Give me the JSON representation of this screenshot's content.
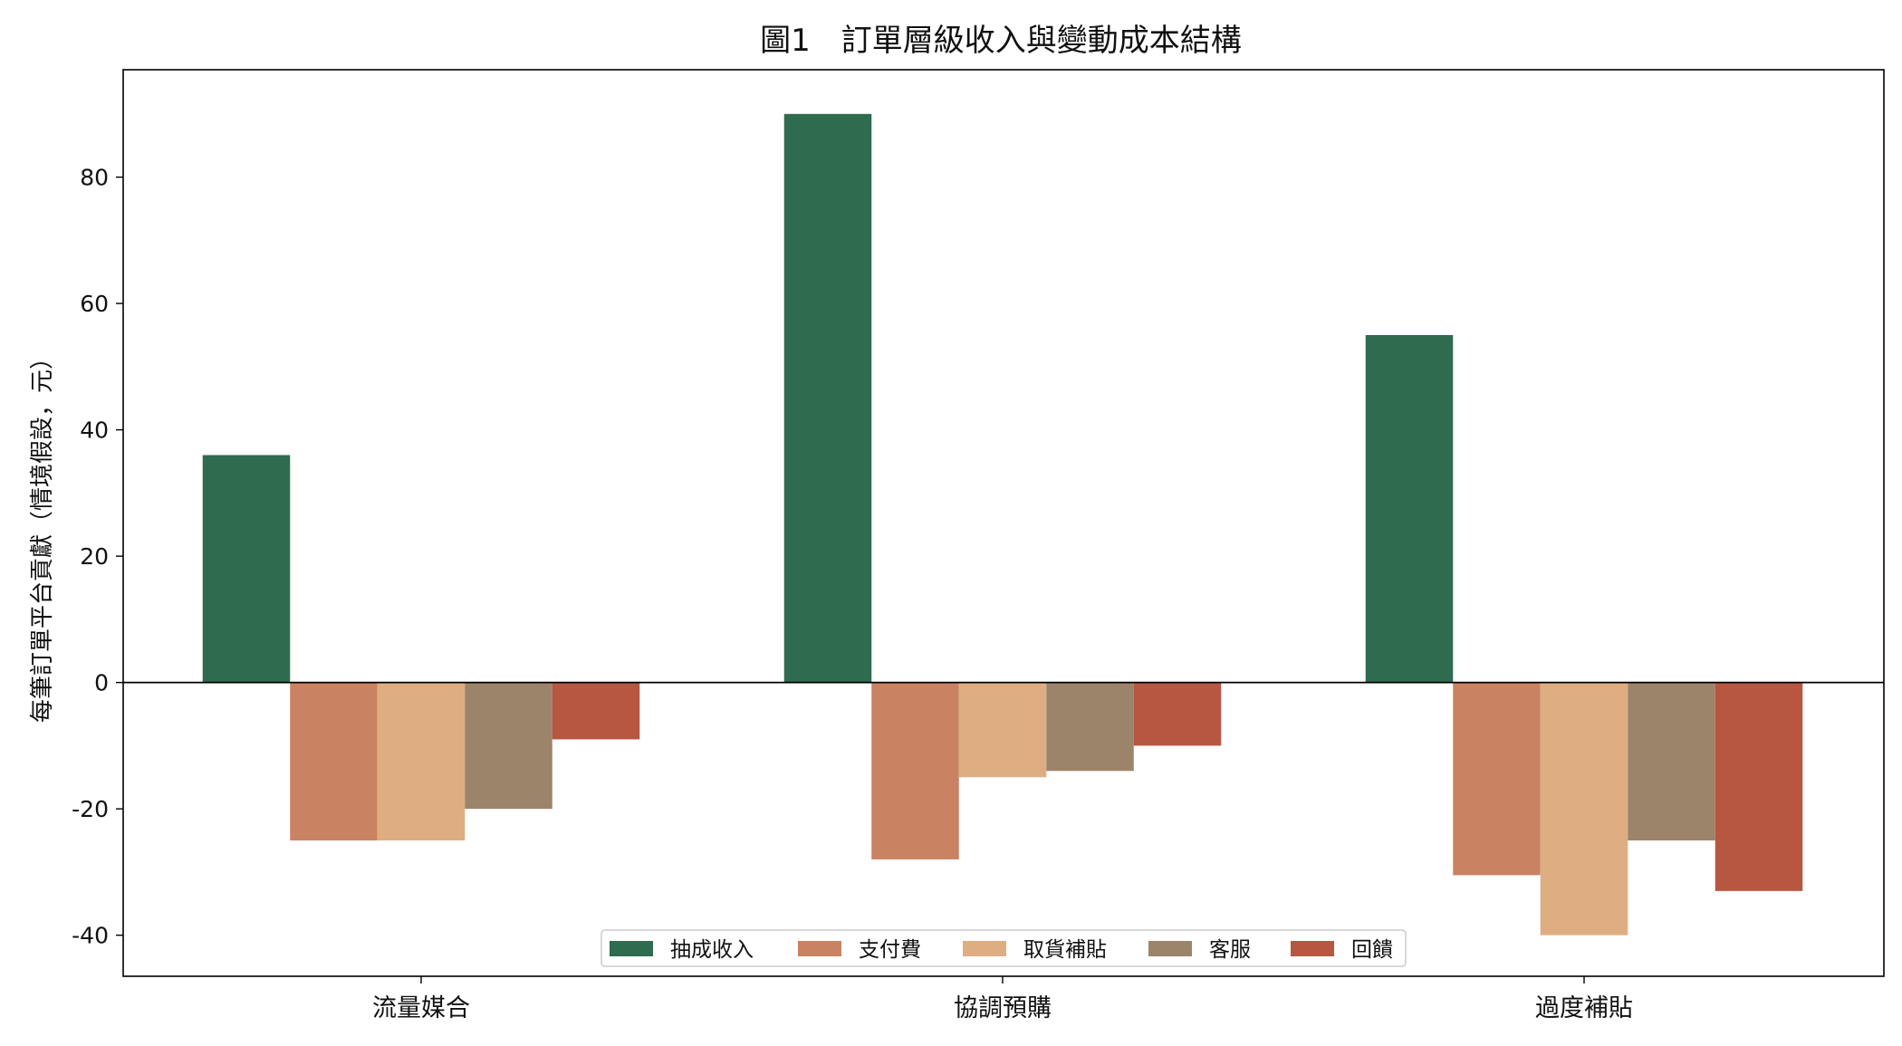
{
  "chart_data": {
    "type": "bar",
    "title": "圖1　訂單層級收入與變動成本結構",
    "xlabel": "",
    "ylabel": "每筆訂單平台貢獻（情境假設，元）",
    "categories": [
      "流量媒合",
      "協調預購",
      "過度補貼"
    ],
    "ylim": [
      -46.5,
      97
    ],
    "yticks": [
      -40,
      -20,
      0,
      20,
      40,
      60,
      80
    ],
    "grid": false,
    "legend_position": "bottom-center",
    "series": [
      {
        "name": "抽成收入",
        "color": "#2e6b4f",
        "values": [
          36,
          90,
          55
        ]
      },
      {
        "name": "支付費",
        "color": "#c98262",
        "values": [
          -25,
          -28,
          -30.5
        ]
      },
      {
        "name": "取貨補貼",
        "color": "#deae82",
        "values": [
          -25,
          -15,
          -40
        ]
      },
      {
        "name": "客服",
        "color": "#9c846b",
        "values": [
          -20,
          -14,
          -25
        ]
      },
      {
        "name": "回饋",
        "color": "#b75741",
        "values": [
          -9,
          -10,
          -33
        ]
      }
    ]
  }
}
